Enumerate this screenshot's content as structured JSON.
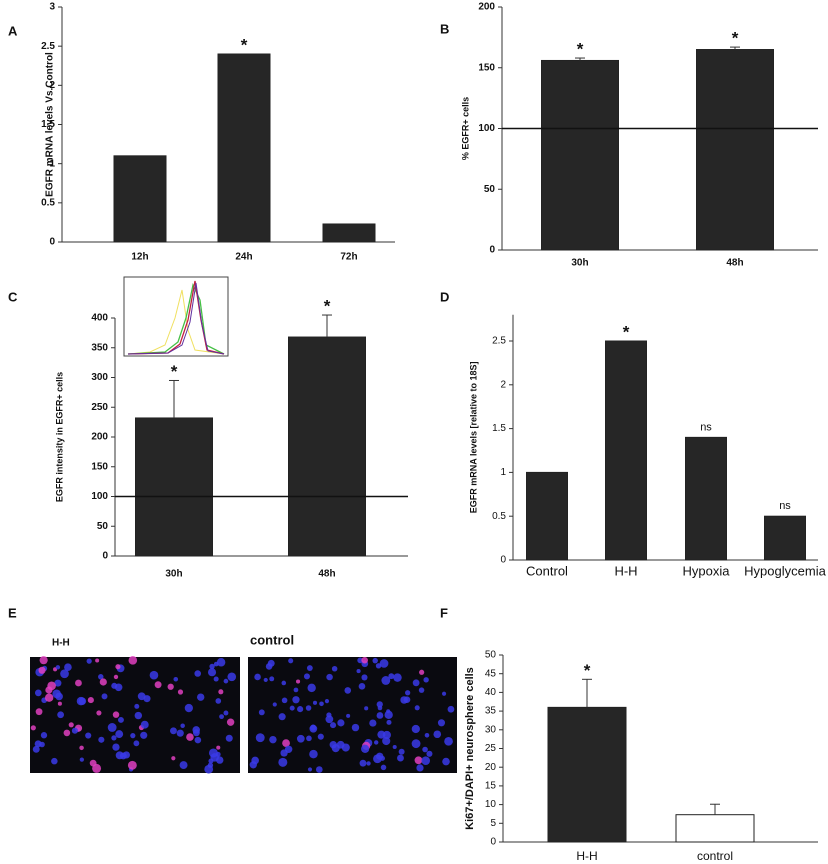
{
  "chart_data": [
    {
      "type": "bar",
      "label": "A",
      "ylabel": "EGFR mRNA levels Vs.Control",
      "categories": [
        "12h",
        "24h",
        "72h"
      ],
      "values": [
        1.1,
        2.4,
        0.23
      ],
      "color": "#262626",
      "ylim": [
        0,
        3
      ],
      "yticks": [
        0,
        0.5,
        1,
        1.5,
        2,
        2.5,
        3
      ],
      "annotations": [
        {
          "category": "24h",
          "text": "*"
        }
      ]
    },
    {
      "type": "bar",
      "label": "B",
      "ylabel": "% EGFR+ cells",
      "categories": [
        "30h",
        "48h"
      ],
      "values": [
        156,
        165
      ],
      "errors": [
        2,
        2
      ],
      "color": "#262626",
      "ylim": [
        0,
        200
      ],
      "yticks": [
        0,
        50,
        100,
        150,
        200
      ],
      "ref_line": 100,
      "annotations": [
        {
          "category": "30h",
          "text": "*"
        },
        {
          "category": "48h",
          "text": "*"
        }
      ]
    },
    {
      "type": "bar",
      "label": "C",
      "ylabel": "EGFR intensity in EGFR+ cells",
      "categories": [
        "30h",
        "48h"
      ],
      "values": [
        232,
        368
      ],
      "errors": [
        63,
        37
      ],
      "color": "#262626",
      "ylim": [
        0,
        400
      ],
      "yticks": [
        0,
        50,
        100,
        150,
        200,
        250,
        300,
        350,
        400
      ],
      "ref_line": 100,
      "annotations": [
        {
          "category": "30h",
          "text": "*"
        },
        {
          "category": "48h",
          "text": "*"
        }
      ]
    },
    {
      "type": "bar",
      "label": "D",
      "ylabel": "EGFR mRNA levels [relative to 18S]",
      "categories": [
        "Control",
        "H-H",
        "Hypoxia",
        "Hypoglycemia"
      ],
      "values": [
        1,
        2.5,
        1.4,
        0.5
      ],
      "color": "#262626",
      "ylim": [
        0,
        2.8
      ],
      "yticks": [
        0,
        0.5,
        1,
        1.5,
        2,
        2.5
      ],
      "annotations": [
        {
          "category": "H-H",
          "text": "*"
        },
        {
          "category": "Hypoxia",
          "text": "ns"
        },
        {
          "category": "Hypoglycemia",
          "text": "ns"
        }
      ]
    },
    {
      "type": "bar",
      "label": "F",
      "ylabel": "Ki67+/DAPI+ neurosphere cells",
      "categories": [
        "H-H",
        "control"
      ],
      "values": [
        36,
        7.3
      ],
      "errors": [
        7.5,
        2.8
      ],
      "colors": [
        "#262626",
        "#ffffff"
      ],
      "ylim": [
        0,
        50
      ],
      "yticks": [
        0,
        5,
        10,
        15,
        20,
        25,
        30,
        35,
        40,
        45,
        50
      ],
      "annotations": [
        {
          "category": "H-H",
          "text": "*"
        }
      ]
    }
  ],
  "images": {
    "label": "E",
    "captions": [
      "H-H",
      "control"
    ]
  }
}
